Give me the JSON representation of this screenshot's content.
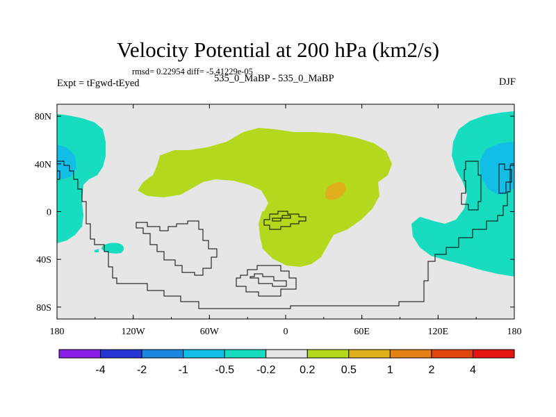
{
  "chart_data": {
    "type": "heatmap",
    "title": "Velocity Potential at 200 hPa (km2/s)",
    "stats_text": "rmsd= 0.22954 diff= -5.41229e-05",
    "left_label": "Expt = tFgwd-tEyed",
    "center_label": "535_0_MaBP - 535_0_MaBP",
    "right_label": "DJF",
    "x_ticks": [
      "180",
      "120W",
      "60W",
      "0",
      "60E",
      "120E",
      "180"
    ],
    "y_ticks": [
      "80N",
      "40N",
      "0",
      "40S",
      "80S"
    ],
    "xlim": [
      -180,
      180
    ],
    "ylim": [
      -90,
      90
    ],
    "colorbar": {
      "colors": [
        "#8a1de6",
        "#2635d6",
        "#1a88e0",
        "#12bde6",
        "#17dcc0",
        "#e6e6e6",
        "#b4d81e",
        "#e0b01c",
        "#e68215",
        "#e44510",
        "#e41410"
      ],
      "labels": [
        "-4",
        "-2",
        "-1",
        "-0.5",
        "-0.2",
        "0.2",
        "0.5",
        "1",
        "2",
        "4"
      ]
    },
    "background_color": "#e6e6e6"
  }
}
